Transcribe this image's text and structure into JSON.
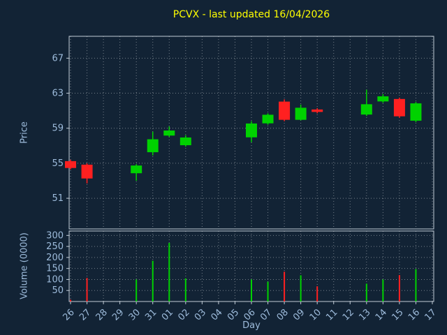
{
  "colors": {
    "background": "#122335",
    "up": "#00d200",
    "down": "#ff2020",
    "grid": "rgba(255,255,255,0.42)",
    "spine": "#c2cdd8",
    "tick_label": "#9dbbdb",
    "axis_label": "#9dbbdb",
    "title": "#ffff00"
  },
  "chart_data": {
    "type": "candlestick",
    "title": "PCVX - last updated 16/04/2026",
    "xlabel": "Day",
    "ylabel": "Price",
    "ylabel2": "Volume (0000)",
    "grid": true,
    "x_categories": [
      "26",
      "27",
      "28",
      "29",
      "30",
      "31",
      "01",
      "02",
      "03",
      "04",
      "05",
      "06",
      "07",
      "08",
      "09",
      "10",
      "11",
      "12",
      "13",
      "14",
      "15",
      "16",
      "17"
    ],
    "price_ticks": [
      51,
      55,
      59,
      63,
      67
    ],
    "price_ylim": [
      47.5,
      69.5
    ],
    "volume_ticks": [
      50,
      100,
      150,
      200,
      250,
      300
    ],
    "volume_ylim": [
      0,
      320
    ],
    "candles": [
      {
        "day": "26",
        "open": 55.2,
        "high": 55.4,
        "low": 54.3,
        "close": 54.5,
        "volume": 8
      },
      {
        "day": "27",
        "open": 54.8,
        "high": 55.0,
        "low": 52.7,
        "close": 53.3,
        "volume": 107
      },
      {
        "day": "30",
        "open": 53.9,
        "high": 54.9,
        "low": 53.0,
        "close": 54.7,
        "volume": 100
      },
      {
        "day": "31",
        "open": 56.3,
        "high": 58.6,
        "low": 55.9,
        "close": 57.7,
        "volume": 185
      },
      {
        "day": "01",
        "open": 58.2,
        "high": 59.2,
        "low": 58.0,
        "close": 58.7,
        "volume": 266
      },
      {
        "day": "02",
        "open": 57.1,
        "high": 58.2,
        "low": 56.9,
        "close": 57.9,
        "volume": 105
      },
      {
        "day": "06",
        "open": 58.0,
        "high": 59.8,
        "low": 57.4,
        "close": 59.5,
        "volume": 100
      },
      {
        "day": "07",
        "open": 59.6,
        "high": 60.7,
        "low": 59.4,
        "close": 60.5,
        "volume": 90
      },
      {
        "day": "08",
        "open": 62.0,
        "high": 62.3,
        "low": 59.8,
        "close": 60.0,
        "volume": 135
      },
      {
        "day": "09",
        "open": 60.0,
        "high": 61.7,
        "low": 59.9,
        "close": 61.3,
        "volume": 119
      },
      {
        "day": "10",
        "open": 61.1,
        "high": 61.3,
        "low": 60.7,
        "close": 60.9,
        "volume": 69
      },
      {
        "day": "13",
        "open": 60.6,
        "high": 63.4,
        "low": 60.4,
        "close": 61.7,
        "volume": 81
      },
      {
        "day": "14",
        "open": 62.1,
        "high": 62.9,
        "low": 61.9,
        "close": 62.6,
        "volume": 100
      },
      {
        "day": "15",
        "open": 62.3,
        "high": 62.5,
        "low": 60.2,
        "close": 60.4,
        "volume": 120
      },
      {
        "day": "16",
        "open": 59.9,
        "high": 62.0,
        "low": 59.7,
        "close": 61.8,
        "volume": 147
      }
    ]
  }
}
